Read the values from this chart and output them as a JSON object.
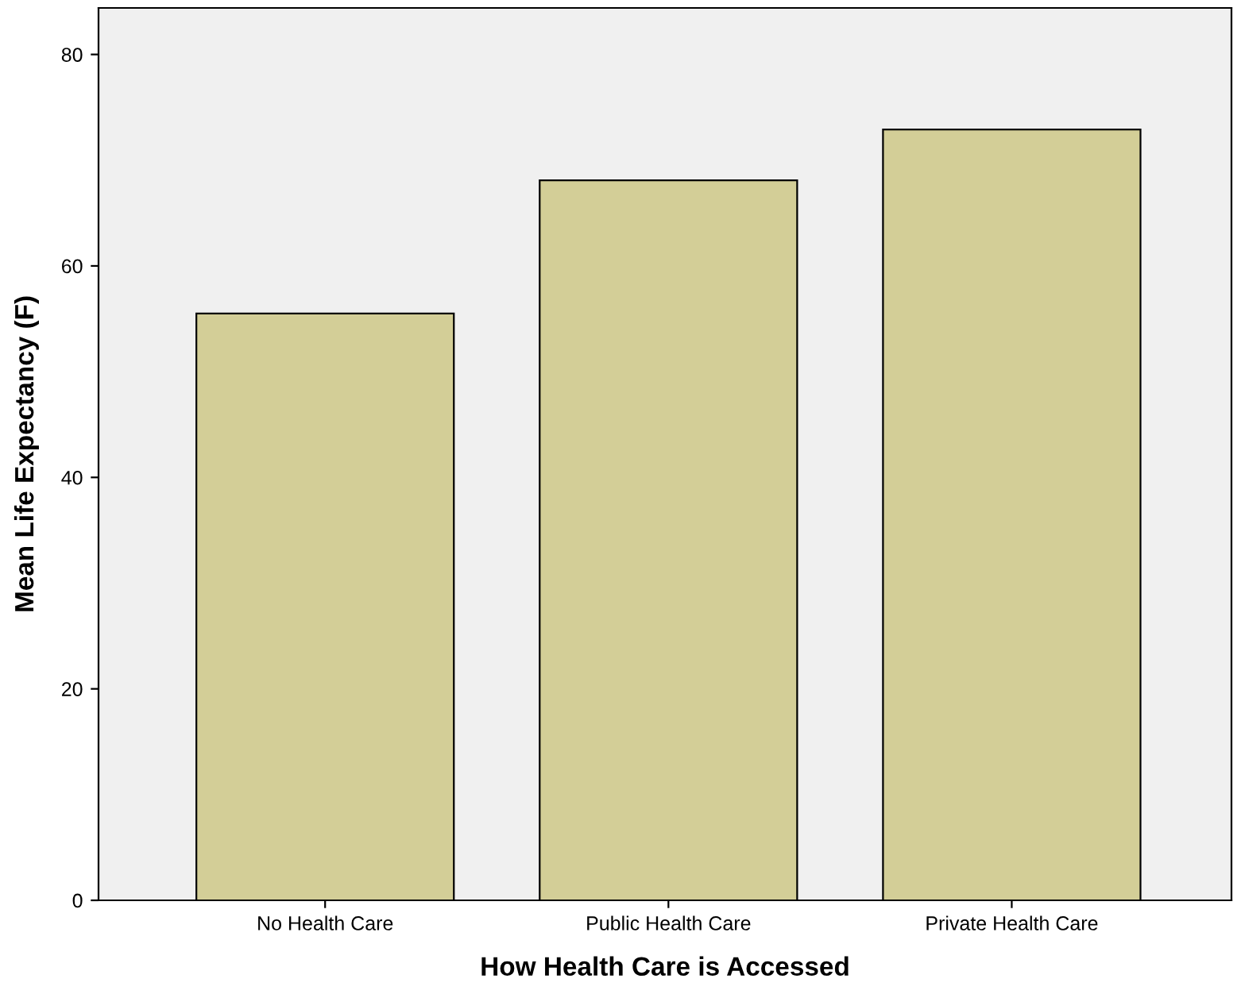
{
  "chart_data": {
    "type": "bar",
    "xlabel": "How Health Care is Accessed",
    "ylabel": "Mean Life Expectancy (F)",
    "categories": [
      "No Health Care",
      "Public Health Care",
      "Private Health Care"
    ],
    "values": [
      55.5,
      68.1,
      72.9
    ],
    "color": "#d3ce97",
    "ylim": [
      0,
      84.4
    ],
    "yticks": [
      0,
      20,
      40,
      60,
      80
    ],
    "grid": false
  }
}
